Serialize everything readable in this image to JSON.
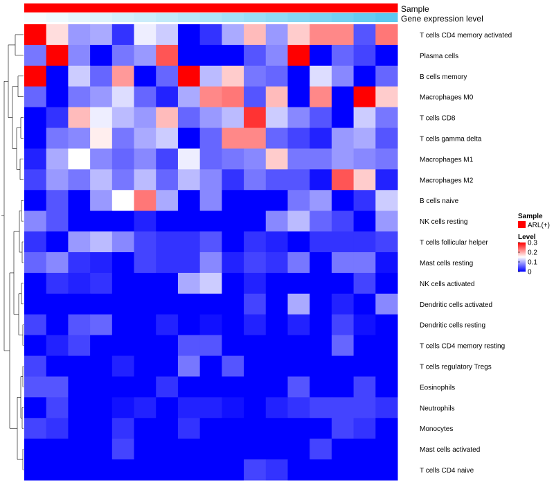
{
  "chart_data": {
    "type": "heatmap",
    "title": "",
    "annotations": {
      "sample": {
        "label": "Sample",
        "value": "ARL(+)",
        "color": "#ff0000"
      },
      "gene_expression": {
        "label": "Gene expression level",
        "low_color": "#ffffff",
        "high_color": "#5bc8f0"
      }
    },
    "rows": [
      "T cells CD4 memory activated",
      "Plasma cells",
      "B cells memory",
      "Macrophages M0",
      "T cells CD8",
      "T cells gamma delta",
      "Macrophages M1",
      "Macrophages M2",
      "B cells naive",
      "NK cells resting",
      "T cells follicular helper",
      "Mast cells resting",
      "NK cells activated",
      "Dendritic cells activated",
      "Dendritic cells resting",
      "T cells CD4 memory resting",
      "T cells regulatory  Tregs",
      "Eosinophils",
      "Neutrophils",
      "Monocytes",
      "Mast cells activated",
      "T cells CD4 naive"
    ],
    "n_columns": 17,
    "values": [
      [
        0.3,
        0.17,
        0.09,
        0.1,
        0.03,
        0.14,
        0.12,
        0.0,
        0.03,
        0.1,
        0.19,
        0.09,
        0.18,
        0.22,
        0.22,
        0.05,
        0.23
      ],
      [
        0.07,
        0.3,
        0.08,
        0.0,
        0.07,
        0.09,
        0.25,
        0.0,
        0.0,
        0.0,
        0.05,
        0.08,
        0.3,
        0.0,
        0.06,
        0.04,
        0.0
      ],
      [
        0.3,
        0.0,
        0.12,
        0.06,
        0.21,
        0.0,
        0.06,
        0.3,
        0.11,
        0.18,
        0.07,
        0.06,
        0.0,
        0.13,
        0.08,
        0.0,
        0.06
      ],
      [
        0.06,
        0.0,
        0.07,
        0.09,
        0.13,
        0.06,
        0.02,
        0.1,
        0.22,
        0.23,
        0.05,
        0.19,
        0.0,
        0.22,
        0.0,
        0.3,
        0.18
      ],
      [
        0.0,
        0.03,
        0.19,
        0.14,
        0.11,
        0.09,
        0.19,
        0.06,
        0.09,
        0.11,
        0.27,
        0.12,
        0.08,
        0.05,
        0.0,
        0.12,
        0.07
      ],
      [
        0.0,
        0.07,
        0.08,
        0.16,
        0.07,
        0.1,
        0.12,
        0.0,
        0.06,
        0.22,
        0.22,
        0.06,
        0.04,
        0.02,
        0.09,
        0.1,
        0.05
      ],
      [
        0.02,
        0.1,
        0.15,
        0.08,
        0.06,
        0.08,
        0.04,
        0.14,
        0.06,
        0.07,
        0.08,
        0.18,
        0.07,
        0.07,
        0.09,
        0.08,
        0.07
      ],
      [
        0.04,
        0.09,
        0.07,
        0.11,
        0.07,
        0.11,
        0.06,
        0.11,
        0.08,
        0.03,
        0.07,
        0.05,
        0.05,
        0.01,
        0.25,
        0.18,
        0.02
      ],
      [
        0.0,
        0.05,
        0.0,
        0.09,
        0.15,
        0.23,
        0.1,
        0.0,
        0.08,
        0.0,
        0.0,
        0.0,
        0.07,
        0.09,
        0.0,
        0.03,
        0.12
      ],
      [
        0.08,
        0.05,
        0.0,
        0.0,
        0.0,
        0.02,
        0.0,
        0.0,
        0.0,
        0.0,
        0.0,
        0.08,
        0.11,
        0.06,
        0.04,
        0.0,
        0.09
      ],
      [
        0.03,
        0.0,
        0.09,
        0.11,
        0.08,
        0.04,
        0.03,
        0.03,
        0.05,
        0.0,
        0.03,
        0.02,
        0.0,
        0.03,
        0.03,
        0.03,
        0.04
      ],
      [
        0.06,
        0.08,
        0.03,
        0.02,
        0.0,
        0.04,
        0.03,
        0.03,
        0.08,
        0.02,
        0.04,
        0.03,
        0.07,
        0.0,
        0.07,
        0.07,
        0.01
      ],
      [
        0.0,
        0.03,
        0.02,
        0.03,
        0.0,
        0.0,
        0.0,
        0.1,
        0.12,
        0.0,
        0.02,
        0.0,
        0.0,
        0.0,
        0.0,
        0.04,
        0.0
      ],
      [
        0.0,
        0.0,
        0.0,
        0.0,
        0.0,
        0.0,
        0.0,
        0.0,
        0.0,
        0.0,
        0.04,
        0.0,
        0.1,
        0.0,
        0.02,
        0.0,
        0.08
      ],
      [
        0.04,
        0.0,
        0.05,
        0.06,
        0.0,
        0.0,
        0.02,
        0.0,
        0.01,
        0.0,
        0.02,
        0.0,
        0.02,
        0.0,
        0.04,
        0.01,
        0.0
      ],
      [
        0.0,
        0.02,
        0.04,
        0.0,
        0.0,
        0.0,
        0.0,
        0.05,
        0.05,
        0.0,
        0.0,
        0.0,
        0.0,
        0.0,
        0.06,
        0.0,
        0.0
      ],
      [
        0.04,
        0.0,
        0.0,
        0.0,
        0.02,
        0.0,
        0.0,
        0.07,
        0.0,
        0.05,
        0.0,
        0.0,
        0.0,
        0.0,
        0.0,
        0.0,
        0.0
      ],
      [
        0.05,
        0.05,
        0.0,
        0.0,
        0.0,
        0.0,
        0.03,
        0.0,
        0.0,
        0.0,
        0.0,
        0.0,
        0.05,
        0.0,
        0.0,
        0.04,
        0.0
      ],
      [
        0.0,
        0.04,
        0.0,
        0.0,
        0.01,
        0.02,
        0.0,
        0.02,
        0.02,
        0.01,
        0.0,
        0.02,
        0.03,
        0.04,
        0.04,
        0.04,
        0.03
      ],
      [
        0.04,
        0.03,
        0.0,
        0.0,
        0.03,
        0.0,
        0.0,
        0.03,
        0.0,
        0.0,
        0.0,
        0.0,
        0.0,
        0.0,
        0.04,
        0.03,
        0.0
      ],
      [
        0.0,
        0.0,
        0.0,
        0.0,
        0.04,
        0.0,
        0.0,
        0.0,
        0.0,
        0.0,
        0.0,
        0.0,
        0.0,
        0.04,
        0.0,
        0.0,
        0.0
      ],
      [
        0.0,
        0.0,
        0.0,
        0.0,
        0.0,
        0.0,
        0.0,
        0.0,
        0.0,
        0.0,
        0.04,
        0.03,
        0.0,
        0.0,
        0.0,
        0.0,
        0.0
      ]
    ],
    "gene_expression_values": [
      0.05,
      0.1,
      0.16,
      0.21,
      0.27,
      0.32,
      0.38,
      0.44,
      0.5,
      0.56,
      0.62,
      0.68,
      0.74,
      0.8,
      0.86,
      0.93,
      1.0
    ],
    "legend": {
      "sample_title": "Sample",
      "sample_entry": "ARL(+)",
      "level_title": "Level",
      "ticks": [
        0.3,
        0.2,
        0.1,
        0
      ],
      "tick_labels": [
        "0.3",
        "0.2",
        "0.1",
        "0"
      ],
      "range": [
        0,
        0.3
      ],
      "colors": {
        "low": "#0000ff",
        "mid": "#ffffff",
        "high": "#ff0000"
      }
    }
  }
}
